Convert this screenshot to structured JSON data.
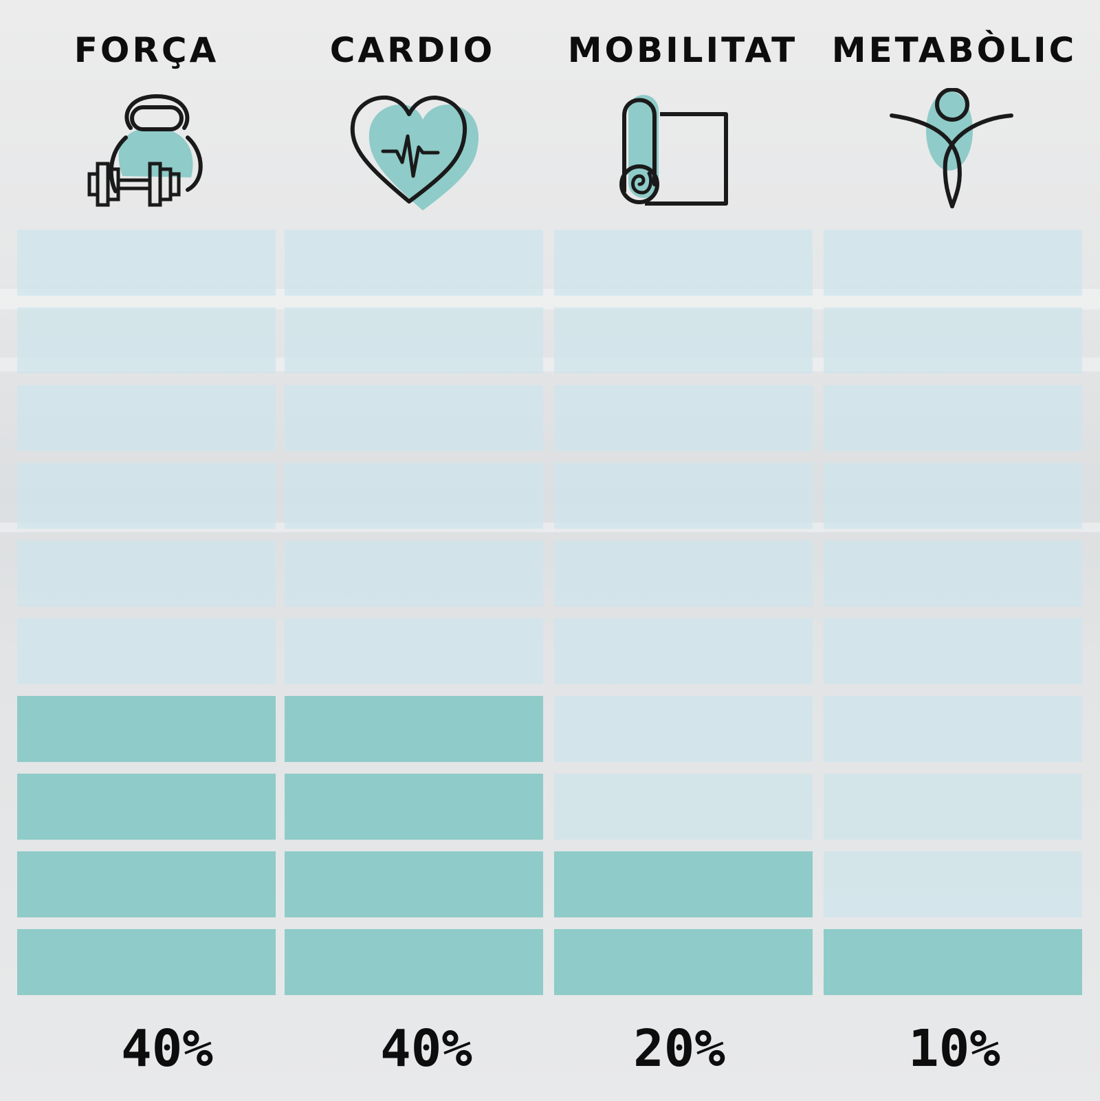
{
  "chart_data": {
    "type": "bar",
    "categories": [
      "FORÇA",
      "CARDIO",
      "MOBILITAT",
      "METABÒLIC"
    ],
    "values": [
      40,
      40,
      20,
      10
    ],
    "value_labels": [
      "40%",
      "40%",
      "20%",
      "10%"
    ],
    "units": "%",
    "max": 100,
    "segments_per_bar": 10,
    "icons": [
      "kettlebell-dumbbell-icon",
      "heartbeat-icon",
      "yoga-mat-icon",
      "person-figure-icon"
    ],
    "colors": {
      "filled": "#8fcbc8",
      "empty": "#cde4ec",
      "text": "#0d0d0d",
      "icon_stroke": "#1a1a1a",
      "icon_fill": "#8fcbc8"
    }
  }
}
